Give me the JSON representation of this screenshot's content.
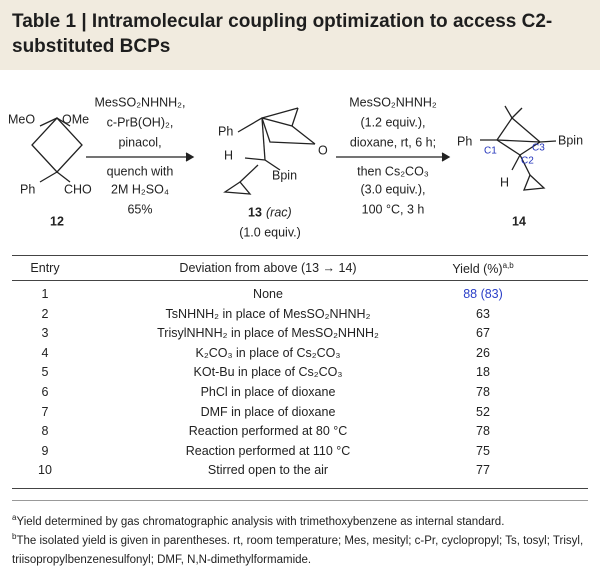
{
  "title": "Table 1 | Intramolecular coupling optimization to access C2-substituted BCPs",
  "scheme": {
    "compound_12": {
      "substituents": [
        "MeO",
        "OMe",
        "Ph",
        "CHO"
      ],
      "label": "12"
    },
    "step_1": {
      "above": [
        "MesSO₂NHNH₂,",
        "c-PrB(OH)₂,",
        "pinacol,"
      ],
      "below": [
        "quench with",
        "2M H₂SO₄",
        "65%"
      ]
    },
    "compound_13": {
      "atoms": [
        "Ph",
        "H",
        "Bpin",
        "O"
      ],
      "label": "13",
      "label_note": "(rac)",
      "amount": "(1.0 equiv.)"
    },
    "step_2": {
      "above": [
        "MesSO₂NHNH₂",
        "(1.2 equiv.),",
        "dioxane, rt, 6 h;"
      ],
      "below": [
        "then Cs₂CO₃",
        "(3.0 equiv.),",
        "100 °C, 3 h"
      ]
    },
    "compound_14": {
      "atoms": [
        "Ph",
        "C1",
        "C3",
        "C2",
        "Bpin",
        "H"
      ],
      "label": "14"
    }
  },
  "table": {
    "headers": [
      "Entry",
      "Deviation from above (13 → 14)",
      "Yield (%)"
    ],
    "header_sup": "a,b",
    "rows": [
      [
        "1",
        "None",
        "88 (83)"
      ],
      [
        "2",
        "TsNHNH₂ in place of MesSO₂NHNH₂",
        "63"
      ],
      [
        "3",
        "TrisylNHNH₂ in place of MesSO₂NHNH₂",
        "67"
      ],
      [
        "4",
        "K₂CO₃ in place of Cs₂CO₃",
        "26"
      ],
      [
        "5",
        "KOt-Bu in place of Cs₂CO₃",
        "18"
      ],
      [
        "6",
        "PhCl in place of dioxane",
        "78"
      ],
      [
        "7",
        "DMF in place of dioxane",
        "52"
      ],
      [
        "8",
        "Reaction performed at 80 °C",
        "78"
      ],
      [
        "9",
        "Reaction performed at 110 °C",
        "75"
      ],
      [
        "10",
        "Stirred open to the air",
        "77"
      ]
    ]
  },
  "footnotes": [
    {
      "mark": "a",
      "text": "Yield determined by gas chromatographic analysis with trimethoxybenzene as internal standard."
    },
    {
      "mark": "b",
      "text": "The isolated yield is given in parentheses. rt, room temperature; Mes, mesityl; c-Pr, cyclopropyl; Ts, tosyl; Trisyl, triisopropylbenzenesulfonyl; DMF, N,N-dimethylformamide."
    }
  ]
}
